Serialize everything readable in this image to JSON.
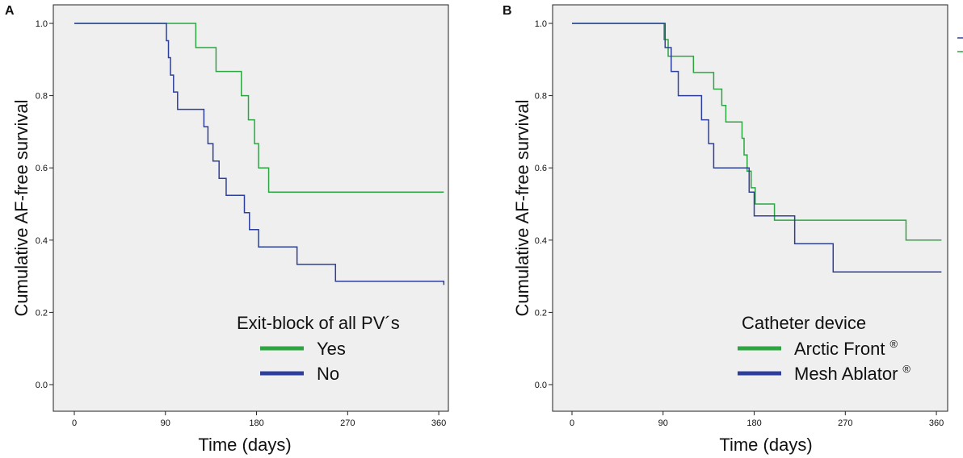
{
  "chart_data": [
    {
      "type": "line",
      "panel_label": "A",
      "title": "",
      "xlabel": "Time (days)",
      "ylabel": "Cumulative  AF-free survival",
      "xlim": [
        0,
        365
      ],
      "ylim": [
        0,
        1
      ],
      "xticks": [
        0,
        90,
        180,
        270,
        360
      ],
      "yticks": [
        "0.0",
        "0.2",
        "0.4",
        "0.6",
        "0.8",
        "1.0"
      ],
      "legend": {
        "title": "Exit-block of all PV´s",
        "placement": "bottom-right"
      },
      "series": [
        {
          "name": "Yes",
          "sup": "",
          "color": "#2ca640",
          "x": [
            0,
            120,
            140,
            165,
            172,
            178,
            182,
            192,
            365
          ],
          "y": [
            1.0,
            0.933,
            0.867,
            0.8,
            0.733,
            0.667,
            0.6,
            0.533,
            0.533
          ]
        },
        {
          "name": "No",
          "sup": "",
          "color": "#2d3f9c",
          "x": [
            0,
            91,
            93,
            95,
            98,
            102,
            108,
            128,
            132,
            137,
            143,
            150,
            157,
            168,
            173,
            178,
            182,
            220,
            258,
            365
          ],
          "y": [
            1.0,
            0.952,
            0.905,
            0.857,
            0.81,
            0.762,
            0.762,
            0.714,
            0.667,
            0.619,
            0.571,
            0.524,
            0.524,
            0.476,
            0.429,
            0.429,
            0.381,
            0.333,
            0.286,
            0.276
          ]
        }
      ]
    },
    {
      "type": "line",
      "panel_label": "B",
      "title": "",
      "xlabel": "Time (days)",
      "ylabel": "Cumulative  AF-free survival",
      "xlim": [
        0,
        365
      ],
      "ylim": [
        0,
        1
      ],
      "xticks": [
        0,
        90,
        180,
        270,
        360
      ],
      "yticks": [
        "0.0",
        "0.2",
        "0.4",
        "0.6",
        "0.8",
        "1.0"
      ],
      "legend": {
        "title": "Catheter device",
        "placement": "bottom-right"
      },
      "series": [
        {
          "name": "Arctic Front",
          "sup": "®",
          "color": "#2ca640",
          "x": [
            0,
            91,
            95,
            100,
            120,
            140,
            148,
            152,
            158,
            168,
            170,
            173,
            177,
            181,
            190,
            200,
            330,
            365
          ],
          "y": [
            1.0,
            0.955,
            0.909,
            0.909,
            0.864,
            0.818,
            0.773,
            0.727,
            0.727,
            0.682,
            0.636,
            0.591,
            0.545,
            0.5,
            0.5,
            0.455,
            0.4,
            0.4
          ]
        },
        {
          "name": "Mesh Ablator",
          "sup": "®",
          "color": "#2d3f9c",
          "x": [
            0,
            92,
            98,
            105,
            128,
            135,
            140,
            175,
            180,
            220,
            258,
            365
          ],
          "y": [
            1.0,
            0.933,
            0.867,
            0.8,
            0.733,
            0.667,
            0.6,
            0.533,
            0.467,
            0.39,
            0.312,
            0.312
          ]
        }
      ]
    }
  ]
}
